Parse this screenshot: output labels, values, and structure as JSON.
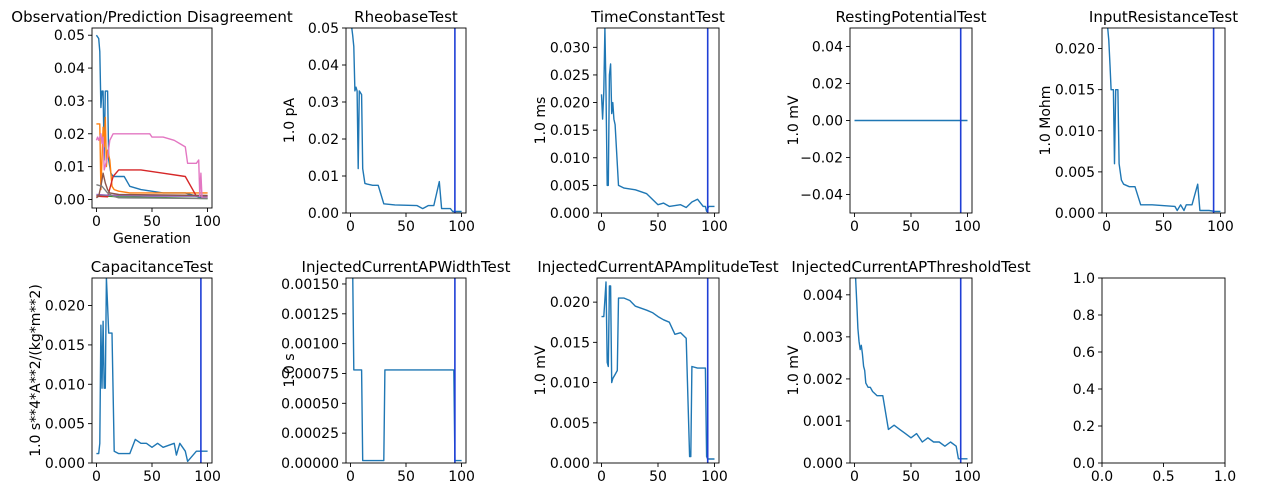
{
  "chart_data": [
    {
      "type": "line",
      "title": "Observation/Prediction Disagreement",
      "xlabel": "Generation",
      "ylabel": "",
      "xlim": [
        -4,
        104
      ],
      "ylim": [
        -0.0026,
        0.0522
      ],
      "xticks": [
        0,
        50,
        100
      ],
      "yticks": [
        0.0,
        0.01,
        0.02,
        0.03,
        0.04,
        0.05
      ],
      "ytick_labels": [
        "0.00",
        "0.01",
        "0.02",
        "0.03",
        "0.04",
        "0.05"
      ],
      "series": [
        {
          "color": "#1f77b4",
          "x": [
            0,
            2,
            3,
            4,
            5,
            6,
            7,
            8,
            10,
            11,
            13,
            15,
            20,
            25,
            30,
            40,
            60,
            80,
            95,
            100
          ],
          "y": [
            0.05,
            0.049,
            0.045,
            0.028,
            0.033,
            0.033,
            0.012,
            0.033,
            0.033,
            0.012,
            0.008,
            0.007,
            0.007,
            0.007,
            0.004,
            0.003,
            0.002,
            0.002,
            0.0005,
            0.0005
          ]
        },
        {
          "color": "#ff7f0e",
          "x": [
            0,
            3,
            4,
            6,
            7,
            8,
            9,
            10,
            12,
            14,
            16,
            20,
            30,
            60,
            100
          ],
          "y": [
            0.023,
            0.023,
            0.003,
            0.022,
            0.016,
            0.025,
            0.01,
            0.015,
            0.012,
            0.004,
            0.003,
            0.0025,
            0.002,
            0.002,
            0.002
          ]
        },
        {
          "color": "#2ca02c",
          "x": [
            0,
            10,
            20,
            50,
            80,
            100
          ],
          "y": [
            0.0012,
            0.001,
            0.0008,
            0.0006,
            0.0004,
            0.0003
          ]
        },
        {
          "color": "#d62728",
          "x": [
            0,
            5,
            10,
            15,
            20,
            40,
            60,
            80,
            90,
            100
          ],
          "y": [
            0.001,
            0.0009,
            0.0008,
            0.007,
            0.009,
            0.009,
            0.008,
            0.007,
            0.001,
            0.001
          ]
        },
        {
          "color": "#9467bd",
          "x": [
            0,
            10,
            20,
            50,
            100
          ],
          "y": [
            0.0015,
            0.0013,
            0.0012,
            0.001,
            0.001
          ]
        },
        {
          "color": "#8c564b",
          "x": [
            0,
            2,
            4,
            6,
            8,
            10,
            12,
            20,
            100
          ],
          "y": [
            0.0005,
            0.001,
            0.004,
            0.008,
            0.005,
            0.003,
            0.002,
            0.0015,
            0.0012
          ]
        },
        {
          "color": "#e377c2",
          "x": [
            0,
            1,
            2,
            4,
            5,
            6,
            7,
            10,
            12,
            15,
            20,
            30,
            48,
            50,
            60,
            70,
            75,
            80,
            82,
            90,
            92,
            93,
            94,
            95,
            100
          ],
          "y": [
            0.018,
            0.019,
            0.018,
            0.02,
            0.017,
            0.019,
            0.009,
            0.013,
            0.018,
            0.02,
            0.02,
            0.02,
            0.02,
            0.019,
            0.019,
            0.018,
            0.017,
            0.016,
            0.011,
            0.011,
            0.012,
            0.001,
            0.008,
            0.0005,
            0.0005
          ]
        },
        {
          "color": "#7f7f7f",
          "x": [
            0,
            5,
            10,
            15,
            20,
            50,
            100
          ],
          "y": [
            0.0045,
            0.004,
            0.002,
            0.001,
            0.0005,
            0.0004,
            0.0003
          ]
        }
      ]
    },
    {
      "type": "line",
      "title": "RheobaseTest",
      "ylabel": "1.0 pA",
      "xlim": [
        -4,
        104
      ],
      "ylim": [
        0,
        0.05
      ],
      "xticks": [
        0,
        50,
        100
      ],
      "yticks": [
        0.0,
        0.01,
        0.02,
        0.03,
        0.04,
        0.05
      ],
      "ytick_labels": [
        "0.00",
        "0.01",
        "0.02",
        "0.03",
        "0.04",
        "0.05"
      ],
      "vline_x": 94,
      "series": [
        {
          "color": "#1f77b4",
          "x": [
            0,
            2,
            3,
            4,
            5,
            6,
            7,
            8,
            10,
            11,
            13,
            15,
            20,
            25,
            30,
            40,
            60,
            65,
            70,
            75,
            80,
            82,
            90,
            92,
            93,
            95,
            100
          ],
          "y": [
            0.053,
            0.048,
            0.045,
            0.033,
            0.034,
            0.033,
            0.012,
            0.033,
            0.032,
            0.012,
            0.008,
            0.0078,
            0.0075,
            0.0075,
            0.0025,
            0.0022,
            0.002,
            0.0012,
            0.002,
            0.002,
            0.0085,
            0.0012,
            0.0012,
            0.0004,
            0.0004,
            0.0004,
            0.0004
          ]
        }
      ]
    },
    {
      "type": "line",
      "title": "TimeConstantTest",
      "ylabel": "1.0 ms",
      "xlim": [
        -4,
        104
      ],
      "ylim": [
        0,
        0.0335
      ],
      "xticks": [
        0,
        50,
        100
      ],
      "yticks": [
        0.0,
        0.005,
        0.01,
        0.015,
        0.02,
        0.025,
        0.03
      ],
      "ytick_labels": [
        "0.000",
        "0.005",
        "0.010",
        "0.015",
        "0.020",
        "0.025",
        "0.030"
      ],
      "vline_x": 94,
      "series": [
        {
          "color": "#1f77b4",
          "x": [
            0,
            1,
            2,
            3,
            4,
            5,
            6,
            7,
            8,
            9,
            10,
            11,
            12,
            15,
            20,
            30,
            40,
            50,
            55,
            60,
            70,
            75,
            80,
            85,
            90,
            92,
            93,
            95,
            100
          ],
          "y": [
            0.0215,
            0.017,
            0.022,
            0.0335,
            0.022,
            0.005,
            0.005,
            0.025,
            0.027,
            0.018,
            0.02,
            0.017,
            0.016,
            0.005,
            0.0045,
            0.0042,
            0.0035,
            0.0015,
            0.0018,
            0.0012,
            0.0015,
            0.001,
            0.002,
            0.0025,
            0.0012,
            0.0012,
            0.0003,
            0.0012,
            0.0012
          ]
        }
      ]
    },
    {
      "type": "line",
      "title": "RestingPotentialTest",
      "ylabel": "1.0 mV",
      "xlim": [
        -4,
        104
      ],
      "ylim": [
        -0.05,
        0.05
      ],
      "xticks": [
        0,
        50,
        100
      ],
      "yticks": [
        -0.04,
        -0.02,
        0.0,
        0.02,
        0.04
      ],
      "ytick_labels": [
        "−0.04",
        "−0.02",
        "0.00",
        "0.02",
        "0.04"
      ],
      "vline_x": 94,
      "series": [
        {
          "color": "#1f77b4",
          "x": [
            0,
            100
          ],
          "y": [
            0,
            0
          ]
        }
      ]
    },
    {
      "type": "line",
      "title": "InputResistanceTest",
      "ylabel": "1.0 Mohm",
      "xlim": [
        -4,
        104
      ],
      "ylim": [
        0,
        0.0225
      ],
      "xticks": [
        0,
        50,
        100
      ],
      "yticks": [
        0.0,
        0.005,
        0.01,
        0.015,
        0.02
      ],
      "ytick_labels": [
        "0.000",
        "0.005",
        "0.010",
        "0.015",
        "0.020"
      ],
      "vline_x": 94,
      "series": [
        {
          "color": "#1f77b4",
          "x": [
            0,
            2,
            3,
            4,
            5,
            6,
            7,
            8,
            10,
            11,
            13,
            15,
            20,
            25,
            30,
            40,
            60,
            62,
            65,
            68,
            70,
            75,
            80,
            82,
            90,
            95,
            100
          ],
          "y": [
            0.024,
            0.021,
            0.018,
            0.015,
            0.015,
            0.015,
            0.006,
            0.015,
            0.015,
            0.006,
            0.004,
            0.0035,
            0.0032,
            0.0032,
            0.001,
            0.001,
            0.0008,
            0.0003,
            0.001,
            0.0003,
            0.001,
            0.001,
            0.0035,
            0.0003,
            0.0003,
            0.0002,
            0.0002
          ]
        }
      ]
    },
    {
      "type": "line",
      "title": "CapacitanceTest",
      "ylabel": "1.0 s**4*A**2/(kg*m**2)",
      "xlim": [
        -4,
        104
      ],
      "ylim": [
        0,
        0.0235
      ],
      "xticks": [
        0,
        50,
        100
      ],
      "yticks": [
        0.0,
        0.005,
        0.01,
        0.015,
        0.02
      ],
      "ytick_labels": [
        "0.000",
        "0.005",
        "0.010",
        "0.015",
        "0.020"
      ],
      "vline_x": 94,
      "series": [
        {
          "color": "#1f77b4",
          "x": [
            0,
            2,
            3,
            4,
            5,
            6,
            7,
            8,
            9,
            10,
            11,
            12,
            14,
            16,
            20,
            30,
            35,
            40,
            45,
            50,
            55,
            60,
            70,
            72,
            75,
            80,
            82,
            90,
            95,
            100
          ],
          "y": [
            0.0012,
            0.0012,
            0.0025,
            0.0175,
            0.0095,
            0.018,
            0.0095,
            0.0095,
            0.0235,
            0.02,
            0.0165,
            0.0165,
            0.0165,
            0.0015,
            0.0012,
            0.0012,
            0.003,
            0.0025,
            0.0025,
            0.002,
            0.0025,
            0.002,
            0.0025,
            0.001,
            0.0025,
            0.0015,
            0.0002,
            0.0015,
            0.0015,
            0.0015
          ]
        }
      ]
    },
    {
      "type": "line",
      "title": "InjectedCurrentAPWidthTest",
      "ylabel": "1.0 s",
      "xlim": [
        -4,
        104
      ],
      "ylim": [
        0,
        0.00155
      ],
      "xticks": [
        0,
        50,
        100
      ],
      "yticks": [
        0.0,
        0.00025,
        0.0005,
        0.00075,
        0.001,
        0.00125,
        0.0015
      ],
      "ytick_labels": [
        "0.00000",
        "0.00025",
        "0.00050",
        "0.00075",
        "0.00100",
        "0.00125",
        "0.00150"
      ],
      "vline_x": 94,
      "series": [
        {
          "color": "#1f77b4",
          "x": [
            0,
            2,
            3,
            5,
            6,
            10,
            11,
            20,
            30,
            31,
            40,
            60,
            80,
            90,
            93,
            94,
            95,
            100
          ],
          "y": [
            0.0016,
            0.0016,
            0.00078,
            0.00078,
            0.00078,
            0.00078,
            2e-05,
            2e-05,
            2e-05,
            0.00078,
            0.00078,
            0.00078,
            0.00078,
            0.00078,
            0.00078,
            2e-05,
            2e-05,
            2e-05
          ]
        }
      ]
    },
    {
      "type": "line",
      "title": "InjectedCurrentAPAmplitudeTest",
      "ylabel": "1.0 mV",
      "xlim": [
        -4,
        104
      ],
      "ylim": [
        0,
        0.023
      ],
      "xticks": [
        0,
        50,
        100
      ],
      "yticks": [
        0.0,
        0.005,
        0.01,
        0.015,
        0.02
      ],
      "ytick_labels": [
        "0.000",
        "0.005",
        "0.010",
        "0.015",
        "0.020"
      ],
      "vline_x": 94,
      "series": [
        {
          "color": "#1f77b4",
          "x": [
            0,
            2,
            4,
            5,
            6,
            7,
            8,
            9,
            10,
            12,
            14,
            15,
            20,
            25,
            30,
            40,
            45,
            50,
            55,
            60,
            65,
            70,
            75,
            78,
            79,
            80,
            85,
            90,
            92,
            93,
            94,
            95,
            100
          ],
          "y": [
            0.0182,
            0.0182,
            0.0225,
            0.0125,
            0.012,
            0.022,
            0.022,
            0.01,
            0.0105,
            0.011,
            0.0115,
            0.0205,
            0.0205,
            0.0202,
            0.0195,
            0.019,
            0.0187,
            0.0182,
            0.0178,
            0.0175,
            0.016,
            0.0162,
            0.0155,
            0.0008,
            0.0008,
            0.012,
            0.0118,
            0.0118,
            0.0118,
            0.0008,
            0.0005,
            0.0005,
            0.0005
          ]
        }
      ]
    },
    {
      "type": "line",
      "title": "InjectedCurrentAPThresholdTest",
      "ylabel": "1.0 mV",
      "xlim": [
        -4,
        104
      ],
      "ylim": [
        0,
        0.0044
      ],
      "xticks": [
        0,
        50,
        100
      ],
      "yticks": [
        0.0,
        0.001,
        0.002,
        0.003,
        0.004
      ],
      "ytick_labels": [
        "0.000",
        "0.001",
        "0.002",
        "0.003",
        "0.004"
      ],
      "vline_x": 94,
      "series": [
        {
          "color": "#1f77b4",
          "x": [
            0,
            1,
            2,
            3,
            4,
            5,
            6,
            7,
            8,
            9,
            10,
            12,
            14,
            16,
            20,
            25,
            30,
            35,
            40,
            45,
            50,
            55,
            60,
            65,
            70,
            75,
            80,
            85,
            90,
            92,
            93,
            95,
            100
          ],
          "y": [
            0.0045,
            0.0044,
            0.0038,
            0.0032,
            0.0029,
            0.0027,
            0.0028,
            0.0026,
            0.0023,
            0.0022,
            0.0019,
            0.0018,
            0.0018,
            0.0017,
            0.0016,
            0.0016,
            0.0008,
            0.0009,
            0.0008,
            0.0007,
            0.0006,
            0.0007,
            0.0005,
            0.0006,
            0.0005,
            0.0005,
            0.0004,
            0.0005,
            0.0004,
            0.0001,
            0.0001,
            0.0001,
            0.0001
          ]
        }
      ]
    },
    {
      "type": "line",
      "title": "",
      "ylabel": "",
      "xlim": [
        0,
        1
      ],
      "ylim": [
        0,
        1
      ],
      "xticks": [
        0,
        0.5,
        1
      ],
      "xtick_labels": [
        "0.0",
        "0.5",
        "1.0"
      ],
      "yticks": [
        0,
        0.2,
        0.4,
        0.6,
        0.8,
        1.0
      ],
      "ytick_labels": [
        "0.0",
        "0.2",
        "0.4",
        "0.6",
        "0.8",
        "1.0"
      ],
      "series": []
    }
  ]
}
